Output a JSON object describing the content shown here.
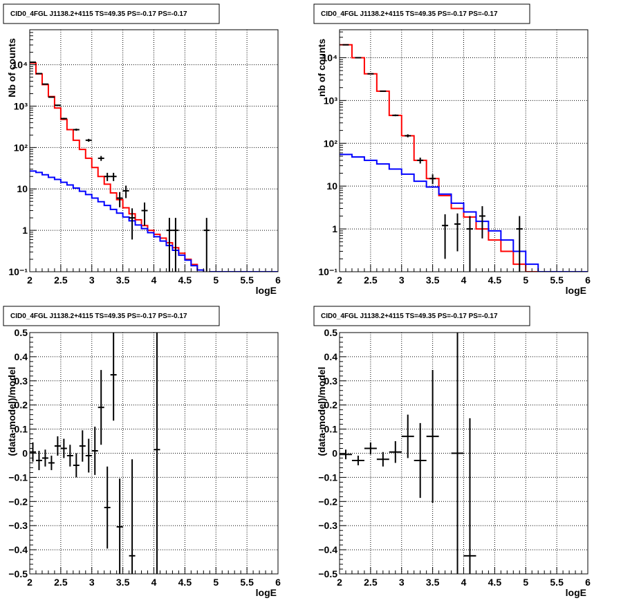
{
  "chart_data": [
    {
      "id": "counts-left",
      "type": "histogram",
      "title": "CID0_4FGL J1138.2+4115 TS=49.35 PS=-0.17 PS=-0.17",
      "xlabel": "logE",
      "ylabel": "Nb of counts",
      "xlim": [
        2,
        6
      ],
      "ylim": [
        0.1,
        70000
      ],
      "yscale": "log",
      "grid": true,
      "xticks": [
        2,
        2.5,
        3,
        3.5,
        4,
        4.5,
        5,
        5.5,
        6
      ],
      "xtick_labels": [
        "2",
        "2.5",
        "3",
        "3.5",
        "4",
        "4.5",
        "5",
        "5.5",
        "6"
      ],
      "yticks": [
        0.1,
        1,
        10,
        100,
        1000,
        10000
      ],
      "ytick_labels": [
        "10⁻¹",
        "1",
        "10",
        "10²",
        "10³",
        "10⁴"
      ],
      "bin_edges": [
        2.0,
        2.1,
        2.2,
        2.3,
        2.4,
        2.5,
        2.6,
        2.7,
        2.8,
        2.9,
        3.0,
        3.1,
        3.2,
        3.3,
        3.4,
        3.5,
        3.6,
        3.7,
        3.8,
        3.9,
        4.0,
        4.1,
        4.2,
        4.3,
        4.4,
        4.5,
        4.6,
        4.7,
        4.8,
        4.9,
        5.0,
        5.1,
        5.2,
        5.3,
        5.4,
        5.5,
        5.6,
        5.7,
        5.8,
        5.9,
        6.0
      ],
      "series": [
        {
          "kind": "step",
          "color": "#ff0000",
          "values": [
            11000,
            6000,
            3300,
            1700,
            900,
            480,
            270,
            150,
            90,
            55,
            33,
            20,
            13,
            8,
            5.5,
            3.5,
            2.5,
            1.8,
            1.3,
            1.0,
            0.8,
            0.65,
            0.5,
            0.38,
            0.28,
            0.2,
            0.15,
            0.11,
            0.09,
            0.1,
            0.1,
            0.1,
            0.1,
            0.1,
            0.1,
            0.1,
            0.1,
            0.1,
            0.1,
            0.1
          ]
        },
        {
          "kind": "step",
          "color": "#0000ff",
          "values": [
            27,
            25,
            22,
            19,
            17,
            14.5,
            12.5,
            10.5,
            8.8,
            7.3,
            6.0,
            4.9,
            4.0,
            3.2,
            2.6,
            2.1,
            1.7,
            1.35,
            1.1,
            0.88,
            0.7,
            0.55,
            0.43,
            0.33,
            0.25,
            0.19,
            0.14,
            0.11,
            0.09,
            0.1,
            0.1,
            0.1,
            0.1,
            0.1,
            0.1,
            0.1,
            0.1,
            0.1,
            0.1,
            0.1
          ]
        },
        {
          "kind": "points",
          "color": "#000000",
          "x": [
            2.05,
            2.15,
            2.25,
            2.35,
            2.45,
            2.55,
            2.75,
            2.95,
            3.15,
            3.25,
            3.35,
            3.45,
            3.55,
            3.65,
            3.85,
            4.25,
            4.35,
            4.85
          ],
          "y": [
            11500,
            6100,
            3400,
            1650,
            1050,
            500,
            270,
            150,
            55,
            20,
            20,
            6,
            9,
            2,
            3,
            1,
            1,
            1
          ],
          "yerr": [
            107,
            78,
            58,
            41,
            32,
            22,
            16,
            12,
            7.4,
            4.5,
            4.5,
            2.4,
            3,
            1.4,
            1.7,
            1,
            1,
            1
          ]
        }
      ]
    },
    {
      "id": "counts-right",
      "type": "histogram",
      "title": "CID0_4FGL J1138.2+4115 TS=49.35 PS=-0.17 PS=-0.17",
      "xlabel": "logE",
      "ylabel": "nb of counts",
      "xlim": [
        2,
        6
      ],
      "ylim": [
        0.1,
        45000
      ],
      "yscale": "log",
      "grid": true,
      "xticks": [
        2,
        2.5,
        3,
        3.5,
        4,
        4.5,
        5,
        5.5,
        6
      ],
      "xtick_labels": [
        "2",
        "2.5",
        "3",
        "3.5",
        "4",
        "4.5",
        "5",
        "5.5",
        "6"
      ],
      "yticks": [
        0.1,
        1,
        10,
        100,
        1000,
        10000
      ],
      "ytick_labels": [
        "10⁻¹",
        "1",
        "10",
        "10²",
        "10³",
        "10⁴"
      ],
      "bin_edges": [
        2.0,
        2.2,
        2.4,
        2.6,
        2.8,
        3.0,
        3.2,
        3.4,
        3.6,
        3.8,
        4.0,
        4.2,
        4.4,
        4.6,
        4.8,
        5.0,
        5.2,
        5.4,
        5.6,
        5.8,
        6.0
      ],
      "series": [
        {
          "kind": "step",
          "color": "#ff0000",
          "values": [
            20000,
            10000,
            4200,
            1650,
            450,
            150,
            40,
            15,
            6,
            3,
            1.9,
            1.0,
            0.55,
            0.3,
            0.15,
            0.1,
            0.1,
            0.1,
            0.1,
            0.1
          ]
        },
        {
          "kind": "step",
          "color": "#0000ff",
          "values": [
            55,
            48,
            40,
            33,
            25,
            19,
            13,
            9.5,
            6.5,
            4,
            2.5,
            1.5,
            0.9,
            0.55,
            0.3,
            0.15,
            0.1,
            0.1,
            0.1,
            0.1
          ]
        },
        {
          "kind": "points",
          "color": "#000000",
          "x": [
            2.1,
            2.3,
            2.5,
            2.7,
            2.9,
            3.1,
            3.3,
            3.5,
            3.7,
            3.9,
            4.1,
            4.3,
            4.9
          ],
          "y": [
            20000,
            10000,
            4200,
            1650,
            450,
            150,
            40,
            15,
            1.2,
            1.3,
            1,
            2,
            1
          ],
          "yerr": [
            141,
            100,
            65,
            41,
            21,
            12,
            6.3,
            3.9,
            1,
            1,
            1,
            1.4,
            1
          ]
        }
      ]
    },
    {
      "id": "residual-left",
      "type": "scatter",
      "title": "CID0_4FGL J1138.2+4115 TS=49.35 PS=-0.17 PS=-0.17",
      "xlabel": "logE",
      "ylabel": "(data-model)/model",
      "xlim": [
        2,
        6
      ],
      "ylim": [
        -0.5,
        0.5
      ],
      "grid": true,
      "xticks": [
        2,
        2.5,
        3,
        3.5,
        4,
        4.5,
        5,
        5.5,
        6
      ],
      "xtick_labels": [
        "2",
        "2.5",
        "3",
        "3.5",
        "4",
        "4.5",
        "5",
        "5.5",
        "6"
      ],
      "yticks": [
        -0.5,
        -0.4,
        -0.3,
        -0.2,
        -0.1,
        0,
        0.1,
        0.2,
        0.3,
        0.4,
        0.5
      ],
      "ytick_labels": [
        "−0.5",
        "−0.4",
        "−0.3",
        "−0.2",
        "−0.1",
        "0",
        "0.1",
        "0.2",
        "0.3",
        "0.4",
        "0.5"
      ],
      "series": [
        {
          "kind": "points",
          "color": "#000000",
          "x": [
            2.05,
            2.15,
            2.25,
            2.35,
            2.45,
            2.55,
            2.65,
            2.75,
            2.85,
            2.95,
            3.05,
            3.15,
            3.25,
            3.35,
            3.45,
            3.65,
            4.05
          ],
          "y": [
            0.005,
            -0.03,
            -0.02,
            -0.04,
            0.03,
            0.02,
            -0.01,
            -0.05,
            0.03,
            -0.01,
            0.01,
            0.19,
            -0.225,
            0.325,
            -0.305,
            -0.425,
            0.015
          ],
          "yerr": [
            0.04,
            0.04,
            0.035,
            0.03,
            0.04,
            0.04,
            0.045,
            0.05,
            0.065,
            0.07,
            0.1,
            0.155,
            0.17,
            0.19,
            0.2,
            0.4,
            0.7
          ],
          "xerr": 0.05
        }
      ]
    },
    {
      "id": "residual-right",
      "type": "scatter",
      "title": "CID0_4FGL J1138.2+4115 TS=49.35 PS=-0.17 PS=-0.17",
      "xlabel": "logE",
      "ylabel": "(data-model)/model",
      "xlim": [
        2,
        6
      ],
      "ylim": [
        -0.5,
        0.5
      ],
      "grid": true,
      "xticks": [
        2,
        2.5,
        3,
        3.5,
        4,
        4.5,
        5,
        5.5,
        6
      ],
      "xtick_labels": [
        "2",
        "2.5",
        "3",
        "3.5",
        "4",
        "4.5",
        "5",
        "5.5",
        "6"
      ],
      "yticks": [
        -0.5,
        -0.4,
        -0.3,
        -0.2,
        -0.1,
        0,
        0.1,
        0.2,
        0.3,
        0.4,
        0.5
      ],
      "ytick_labels": [
        "−0.5",
        "−0.4",
        "−0.3",
        "−0.2",
        "−0.1",
        "0",
        "0.1",
        "0.2",
        "0.3",
        "0.4",
        "0.5"
      ],
      "series": [
        {
          "kind": "points",
          "color": "#000000",
          "x": [
            2.1,
            2.3,
            2.5,
            2.7,
            2.9,
            3.1,
            3.3,
            3.5,
            3.9,
            4.1
          ],
          "y": [
            -0.005,
            -0.03,
            0.02,
            -0.025,
            0.005,
            0.07,
            -0.03,
            0.07,
            0,
            -0.425
          ],
          "yerr": [
            0.02,
            0.02,
            0.025,
            0.03,
            0.045,
            0.09,
            0.155,
            0.275,
            0.6,
            0.57
          ],
          "xerr": 0.1
        }
      ]
    }
  ]
}
